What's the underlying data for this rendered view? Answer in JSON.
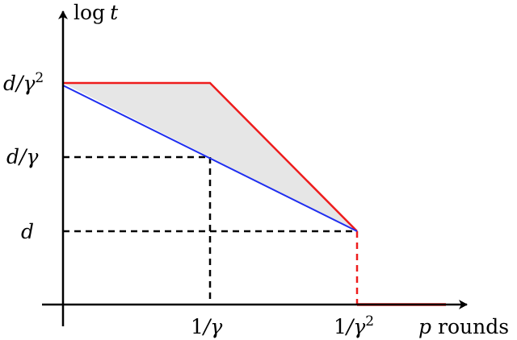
{
  "labels": {
    "y_axis_fn": "log",
    "y_axis_var": "t",
    "x_axis_var": "p",
    "x_axis_word": "rounds",
    "y_tick_top_num": "d",
    "y_tick_top_den": "/γ",
    "y_tick_top_exp": "2",
    "y_tick_mid_num": "d",
    "y_tick_mid_den": "/γ",
    "y_tick_low": "d",
    "x_tick_1_num": "1",
    "x_tick_1_den": "/γ",
    "x_tick_2_num": "1",
    "x_tick_2_den": "/γ",
    "x_tick_2_exp": "2"
  },
  "colors": {
    "upper_bound": "#ee1c1c",
    "lower_bound": "#1f2ef0",
    "region_fill": "#e6e6e6",
    "axis": "#000000",
    "guide": "#000000"
  }
}
